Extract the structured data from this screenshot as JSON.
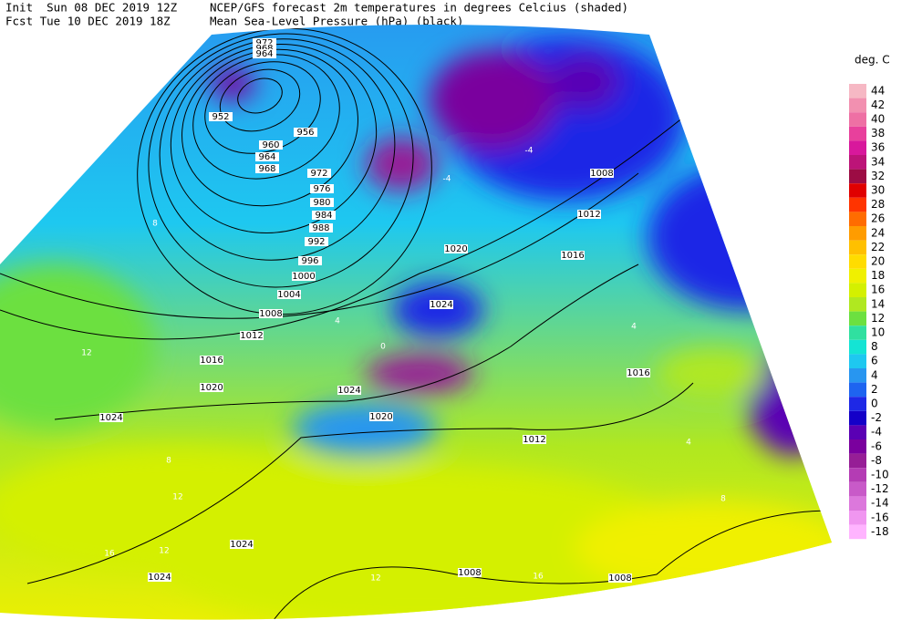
{
  "header": {
    "init": "Init  Sun 08 DEC 2019 12Z",
    "fcst": "Fcst Tue 10 DEC 2019 18Z",
    "title": "NCEP/GFS forecast 2m temperatures in degrees Celcius (shaded)",
    "subtitle": "Mean Sea-Level Pressure (hPa) (black)"
  },
  "legend": {
    "title": "deg. C",
    "levels": [
      44,
      42,
      40,
      38,
      36,
      34,
      32,
      30,
      28,
      26,
      24,
      22,
      20,
      18,
      16,
      14,
      12,
      10,
      8,
      6,
      4,
      2,
      0,
      -2,
      -4,
      -6,
      -8,
      -10,
      -12,
      -14,
      -16,
      -18
    ],
    "colors": [
      "#f6b8c4",
      "#f290b0",
      "#ee70a4",
      "#e8409c",
      "#d8189c",
      "#bc1478",
      "#9c0c44",
      "#e00000",
      "#ff3400",
      "#ff6c00",
      "#ff9c00",
      "#ffc000",
      "#ffdc00",
      "#f0f000",
      "#d4f000",
      "#b0e820",
      "#6ce040",
      "#30e0a0",
      "#14e4d4",
      "#1ec8f0",
      "#2896f0",
      "#1e64f0",
      "#1e28e6",
      "#1400c8",
      "#5a00b4",
      "#7a009e",
      "#961e96",
      "#b43cb4",
      "#c85ac8",
      "#dc78dc",
      "#f096f0",
      "#ffb4ff"
    ]
  },
  "isobar_labels": [
    972,
    968,
    964,
    952,
    956,
    960,
    964,
    968,
    972,
    976,
    980,
    984,
    988,
    992,
    996,
    1000,
    1004,
    1008,
    1012,
    1016,
    1020,
    1024,
    1024,
    1020,
    1016,
    1012,
    1008,
    1016,
    1020,
    1024,
    1012,
    1024,
    1024,
    1008,
    1008
  ],
  "temperature_labels": [
    12,
    8,
    8,
    12,
    16,
    12,
    4,
    0,
    4,
    0,
    -4,
    -4,
    4,
    8,
    16,
    12
  ]
}
